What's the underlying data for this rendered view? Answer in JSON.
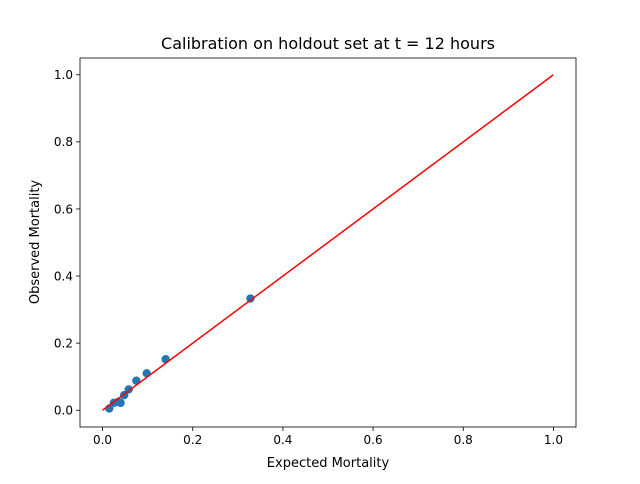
{
  "chart_data": {
    "type": "scatter",
    "title": "Calibration on holdout set at t = 12 hours",
    "xlabel": "Expected Mortality",
    "ylabel": "Observed Mortality",
    "xlim": [
      -0.05,
      1.05
    ],
    "ylim": [
      -0.05,
      1.05
    ],
    "xticks": [
      0.0,
      0.2,
      0.4,
      0.6,
      0.8,
      1.0
    ],
    "yticks": [
      0.0,
      0.2,
      0.4,
      0.6,
      0.8,
      1.0
    ],
    "xtick_labels": [
      "0.0",
      "0.2",
      "0.4",
      "0.6",
      "0.8",
      "1.0"
    ],
    "ytick_labels": [
      "0.0",
      "0.2",
      "0.4",
      "0.6",
      "0.8",
      "1.0"
    ],
    "grid": false,
    "legend": "none",
    "series": [
      {
        "kind": "scatter",
        "color": "#1f77b4",
        "x": [
          0.015,
          0.025,
          0.035,
          0.04,
          0.048,
          0.058,
          0.075,
          0.098,
          0.14,
          0.328
        ],
        "y": [
          0.005,
          0.022,
          0.025,
          0.022,
          0.045,
          0.062,
          0.088,
          0.11,
          0.152,
          0.333
        ]
      },
      {
        "kind": "line",
        "color": "#ff0000",
        "x": [
          0.0,
          1.0
        ],
        "y": [
          0.0,
          1.0
        ]
      }
    ]
  }
}
